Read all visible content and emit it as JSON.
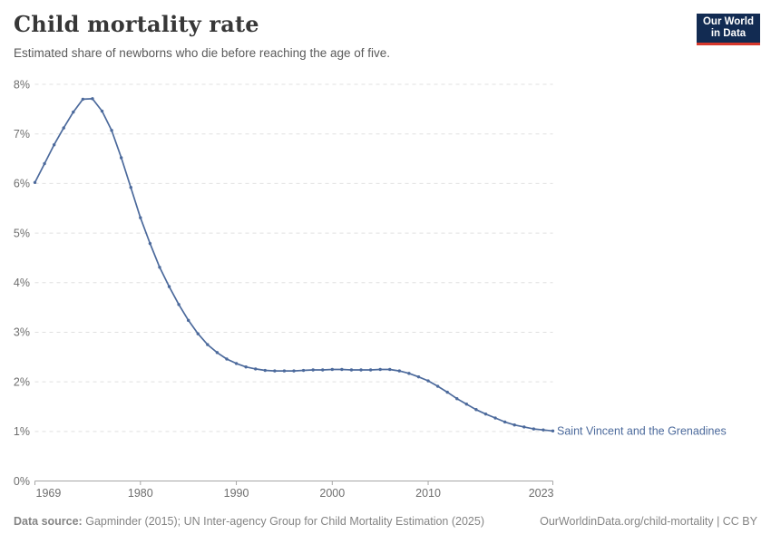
{
  "header": {
    "title": "Child mortality rate",
    "subtitle": "Estimated share of newborns who die before reaching the age of five.",
    "logo_line1": "Our World",
    "logo_line2": "in Data",
    "logo_bg_color": "#122b52",
    "logo_accent_color": "#d7382c"
  },
  "chart_data": {
    "type": "line",
    "title": "Child mortality rate",
    "subtitle": "Estimated share of newborns who die before reaching the age of five.",
    "unit": "%",
    "ylim": [
      0,
      8
    ],
    "yticks": [
      0,
      1,
      2,
      3,
      4,
      5,
      6,
      7,
      8
    ],
    "ytick_format": "{v}%",
    "xticks": [
      1969,
      1980,
      1990,
      2000,
      2010,
      2023
    ],
    "grid": "horizontal-dashed",
    "legend": "end-of-line-label",
    "series": [
      {
        "name": "Saint Vincent and the Grenadines",
        "color": "#4c6a9c",
        "x": [
          1969,
          1970,
          1971,
          1972,
          1973,
          1974,
          1975,
          1976,
          1977,
          1978,
          1979,
          1980,
          1981,
          1982,
          1983,
          1984,
          1985,
          1986,
          1987,
          1988,
          1989,
          1990,
          1991,
          1992,
          1993,
          1994,
          1995,
          1996,
          1997,
          1998,
          1999,
          2000,
          2001,
          2002,
          2003,
          2004,
          2005,
          2006,
          2007,
          2008,
          2009,
          2010,
          2011,
          2012,
          2013,
          2014,
          2015,
          2016,
          2017,
          2018,
          2019,
          2020,
          2021,
          2022,
          2023
        ],
        "values": [
          6.02,
          6.4,
          6.78,
          7.12,
          7.44,
          7.7,
          7.71,
          7.46,
          7.07,
          6.52,
          5.92,
          5.31,
          4.79,
          4.31,
          3.92,
          3.56,
          3.24,
          2.97,
          2.75,
          2.59,
          2.46,
          2.37,
          2.3,
          2.26,
          2.23,
          2.22,
          2.22,
          2.22,
          2.23,
          2.24,
          2.24,
          2.25,
          2.25,
          2.24,
          2.24,
          2.24,
          2.25,
          2.25,
          2.22,
          2.17,
          2.1,
          2.02,
          1.91,
          1.79,
          1.66,
          1.55,
          1.44,
          1.35,
          1.27,
          1.19,
          1.13,
          1.09,
          1.05,
          1.03,
          1.01
        ]
      }
    ]
  },
  "footer": {
    "datasource_label": "Data source:",
    "datasource_text": "Gapminder (2015); UN Inter-agency Group for Child Mortality Estimation (2025)",
    "link_text": "OurWorldinData.org/child-mortality | CC BY"
  }
}
